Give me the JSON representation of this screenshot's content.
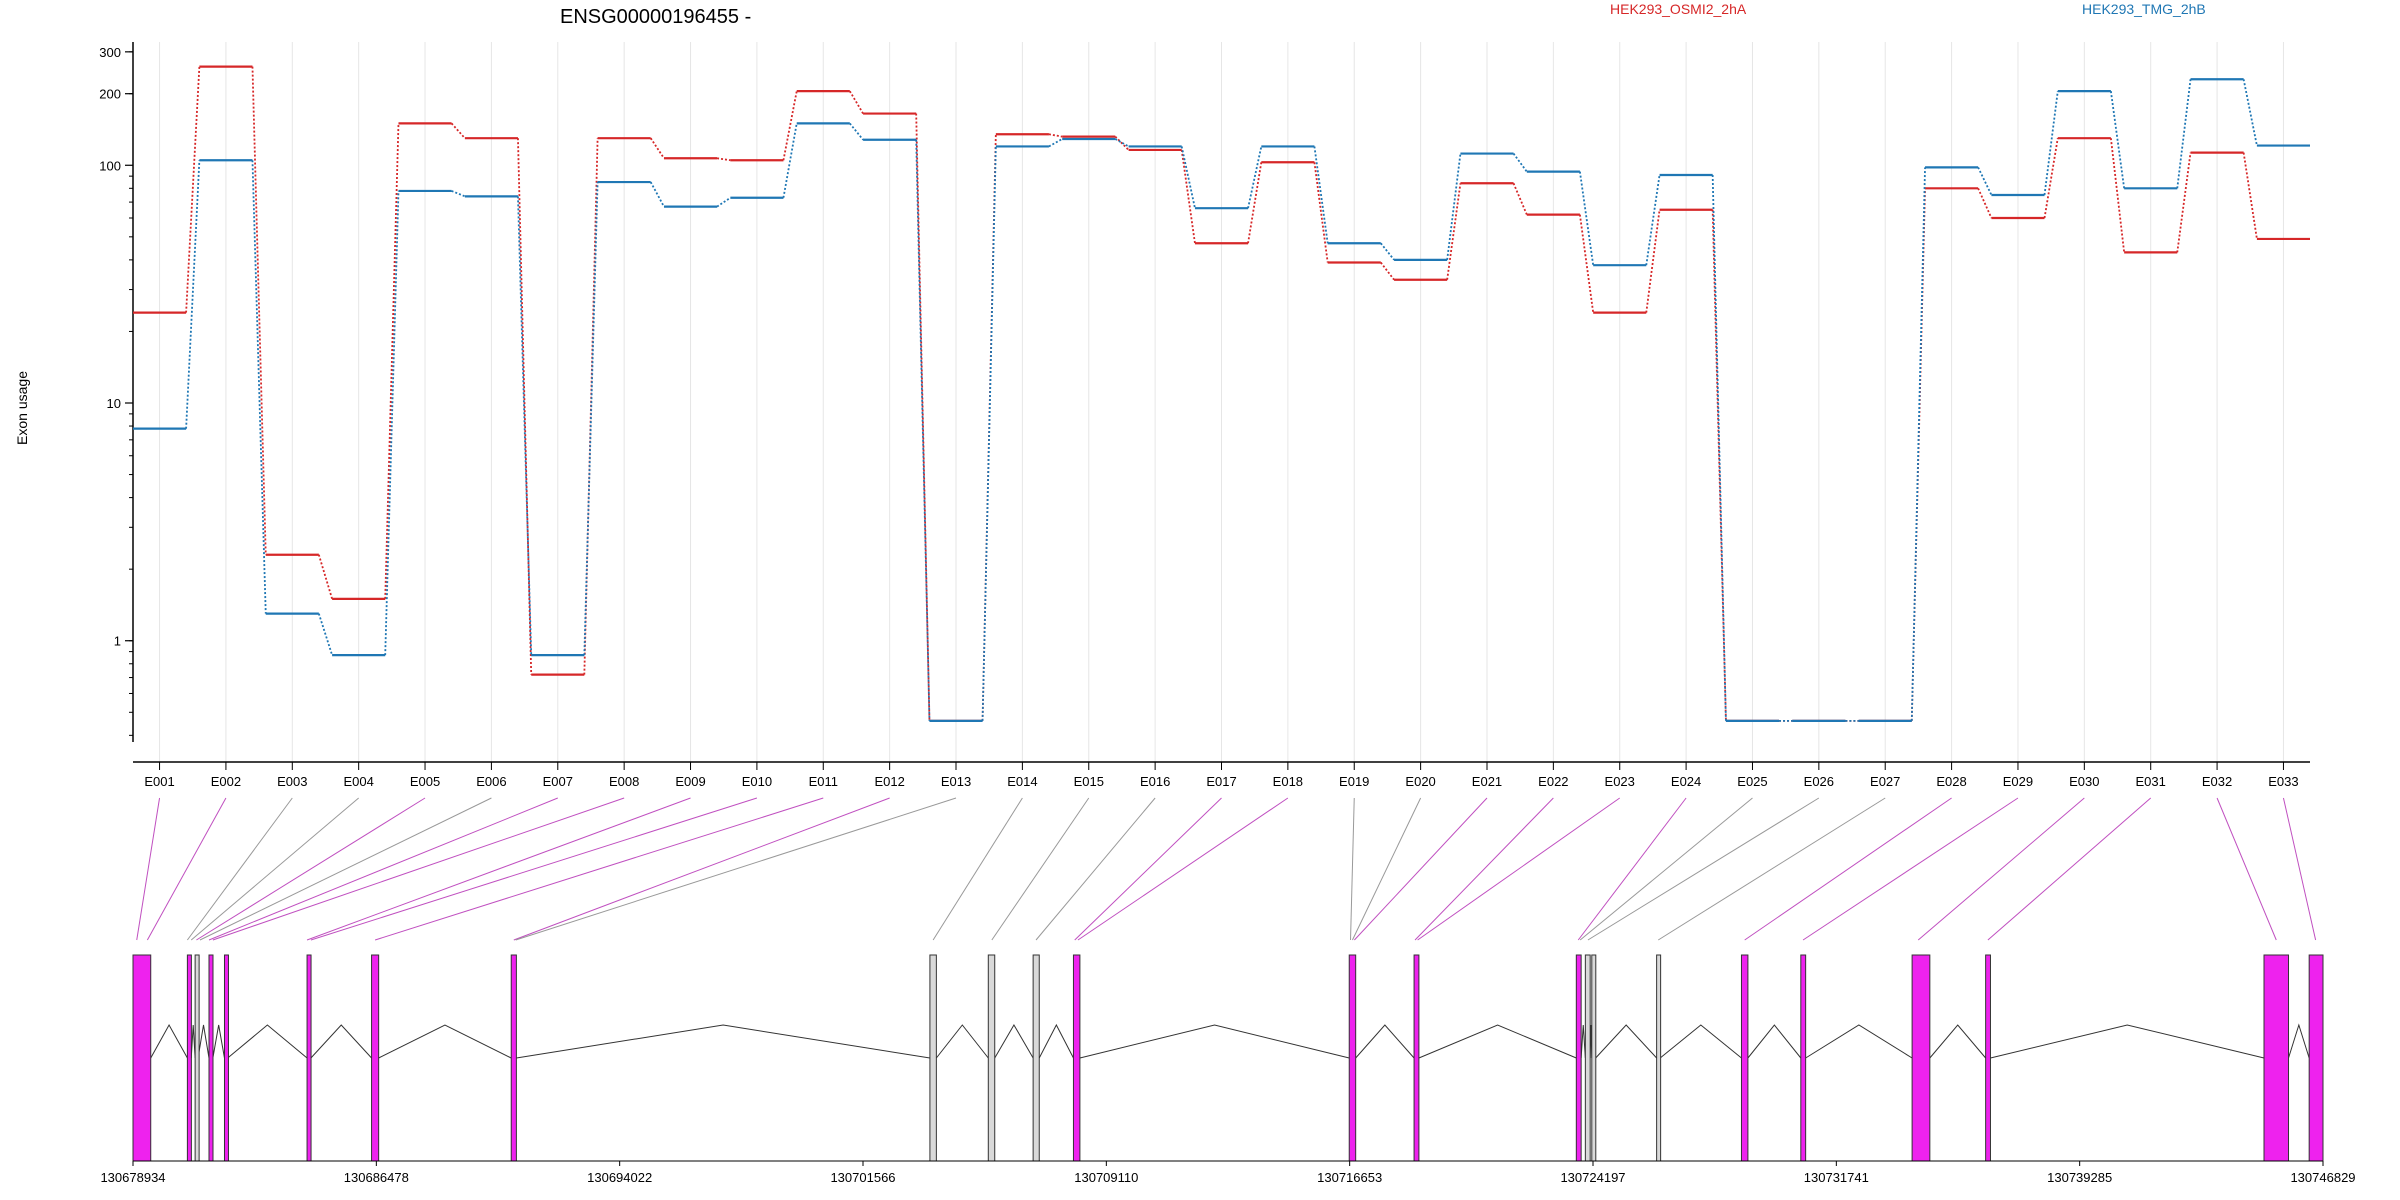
{
  "chart_data": {
    "type": "line",
    "title": "ENSG00000196455 -",
    "ylabel": "Exon usage",
    "yscale": "log",
    "ylim": [
      0.5,
      300
    ],
    "yticks": [
      1,
      10,
      100,
      200,
      300
    ],
    "legend_placement": "top-right",
    "grid": true,
    "categories": [
      "E001",
      "E002",
      "E003",
      "E004",
      "E005",
      "E006",
      "E007",
      "E008",
      "E009",
      "E010",
      "E011",
      "E012",
      "E013",
      "E014",
      "E015",
      "E016",
      "E017",
      "E018",
      "E019",
      "E020",
      "E021",
      "E022",
      "E023",
      "E024",
      "E025",
      "E026",
      "E027",
      "E028",
      "E029",
      "E030",
      "E031",
      "E032",
      "E033"
    ],
    "series": [
      {
        "name": "HEK293_OSMI2_2hA",
        "color": "#d62728",
        "values": [
          24,
          260,
          2.3,
          1.5,
          150,
          130,
          0.72,
          130,
          107,
          105,
          205,
          165,
          0.46,
          135,
          132,
          116,
          47,
          103,
          39,
          33,
          84,
          62,
          24,
          65,
          0.46,
          0.46,
          0.46,
          80,
          60,
          130,
          43,
          113,
          49
        ]
      },
      {
        "name": "HEK293_TMG_2hB",
        "color": "#1f77b4",
        "values": [
          7.8,
          105,
          1.3,
          0.87,
          78,
          74,
          0.87,
          85,
          67,
          73,
          150,
          128,
          0.46,
          120,
          129,
          120,
          66,
          120,
          47,
          40,
          112,
          94,
          38,
          91,
          0.46,
          0.46,
          0.46,
          98,
          75,
          205,
          80,
          230,
          121
        ]
      }
    ],
    "gene_model": {
      "coordinate_ticks": [
        "130678934",
        "130686478",
        "130694022",
        "130701566",
        "130709110",
        "130716653",
        "130724197",
        "130731741",
        "130739285",
        "130746829"
      ],
      "exons": [
        {
          "start": 130678934,
          "end": 130679484,
          "highlight": true
        },
        {
          "start": 130680620,
          "end": 130680740,
          "highlight": true
        },
        {
          "start": 130680860,
          "end": 130680950,
          "highlight": false
        },
        {
          "start": 130681290,
          "end": 130681410,
          "highlight": true
        },
        {
          "start": 130681770,
          "end": 130681870,
          "highlight": true
        },
        {
          "start": 130684330,
          "end": 130684450,
          "highlight": true
        },
        {
          "start": 130686330,
          "end": 130686550,
          "highlight": true
        },
        {
          "start": 130690660,
          "end": 130690820,
          "highlight": true
        },
        {
          "start": 130703640,
          "end": 130703840,
          "highlight": false
        },
        {
          "start": 130705450,
          "end": 130705650,
          "highlight": false
        },
        {
          "start": 130706840,
          "end": 130707030,
          "highlight": false
        },
        {
          "start": 130708090,
          "end": 130708290,
          "highlight": true
        },
        {
          "start": 130716640,
          "end": 130716840,
          "highlight": true
        },
        {
          "start": 130718650,
          "end": 130718800,
          "highlight": true
        },
        {
          "start": 130723680,
          "end": 130723830,
          "highlight": true
        },
        {
          "start": 130723960,
          "end": 130724110,
          "highlight": false
        },
        {
          "start": 130724160,
          "end": 130724280,
          "highlight": false
        },
        {
          "start": 130726170,
          "end": 130726280,
          "highlight": false
        },
        {
          "start": 130728800,
          "end": 130729000,
          "highlight": true
        },
        {
          "start": 130730640,
          "end": 130730790,
          "highlight": true
        },
        {
          "start": 130734090,
          "end": 130734640,
          "highlight": true
        },
        {
          "start": 130736370,
          "end": 130736520,
          "highlight": true
        },
        {
          "start": 130745000,
          "end": 130745760,
          "highlight": true
        },
        {
          "start": 130746400,
          "end": 130746829,
          "highlight": true
        }
      ],
      "connector_targets": [
        {
          "exon": "E001",
          "at": 130679050,
          "highlight": true
        },
        {
          "exon": "E002",
          "at": 130679380,
          "highlight": true
        },
        {
          "exon": "E003",
          "at": 130680620,
          "highlight": false
        },
        {
          "exon": "E004",
          "at": 130680740,
          "highlight": false
        },
        {
          "exon": "E005",
          "at": 130680900,
          "highlight": true
        },
        {
          "exon": "E006",
          "at": 130681010,
          "highlight": false
        },
        {
          "exon": "E007",
          "at": 130681290,
          "highlight": true
        },
        {
          "exon": "E008",
          "at": 130681410,
          "highlight": true
        },
        {
          "exon": "E009",
          "at": 130684330,
          "highlight": true
        },
        {
          "exon": "E010",
          "at": 130684450,
          "highlight": true
        },
        {
          "exon": "E011",
          "at": 130686440,
          "highlight": true
        },
        {
          "exon": "E012",
          "at": 130690740,
          "highlight": true
        },
        {
          "exon": "E013",
          "at": 130690800,
          "highlight": false
        },
        {
          "exon": "E014",
          "at": 130703740,
          "highlight": false
        },
        {
          "exon": "E015",
          "at": 130705560,
          "highlight": false
        },
        {
          "exon": "E016",
          "at": 130706930,
          "highlight": false
        },
        {
          "exon": "E017",
          "at": 130708130,
          "highlight": true
        },
        {
          "exon": "E018",
          "at": 130708230,
          "highlight": true
        },
        {
          "exon": "E019",
          "at": 130716680,
          "highlight": false
        },
        {
          "exon": "E020",
          "at": 130716740,
          "highlight": false
        },
        {
          "exon": "E021",
          "at": 130716800,
          "highlight": true
        },
        {
          "exon": "E022",
          "at": 130718680,
          "highlight": true
        },
        {
          "exon": "E023",
          "at": 130718760,
          "highlight": true
        },
        {
          "exon": "E024",
          "at": 130723740,
          "highlight": true
        },
        {
          "exon": "E025",
          "at": 130723800,
          "highlight": false
        },
        {
          "exon": "E026",
          "at": 130724040,
          "highlight": false
        },
        {
          "exon": "E027",
          "at": 130726220,
          "highlight": false
        },
        {
          "exon": "E028",
          "at": 130728900,
          "highlight": true
        },
        {
          "exon": "E029",
          "at": 130730710,
          "highlight": true
        },
        {
          "exon": "E030",
          "at": 130734280,
          "highlight": true
        },
        {
          "exon": "E031",
          "at": 130736440,
          "highlight": true
        },
        {
          "exon": "E032",
          "at": 130745380,
          "highlight": true
        },
        {
          "exon": "E033",
          "at": 130746600,
          "highlight": true
        }
      ]
    }
  },
  "colors": {
    "exon_highlight": "#ee22ee",
    "exon_plain": "#d9d9d9",
    "connector_highlight": "#c050c0",
    "connector_plain": "#999999"
  }
}
